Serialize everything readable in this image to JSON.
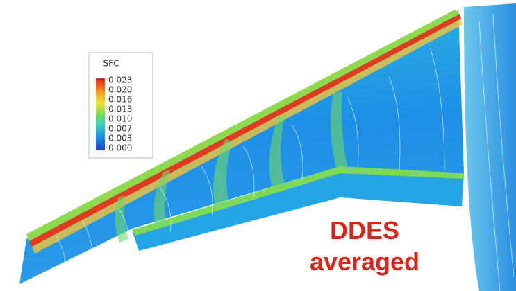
{
  "colorbar": {
    "title": "SFC",
    "labels": [
      "0.023",
      "0.020",
      "0.016",
      "0.013",
      "0.010",
      "0.007",
      "0.003",
      "0.000"
    ]
  },
  "caption": [
    "DDES",
    "averaged"
  ]
}
